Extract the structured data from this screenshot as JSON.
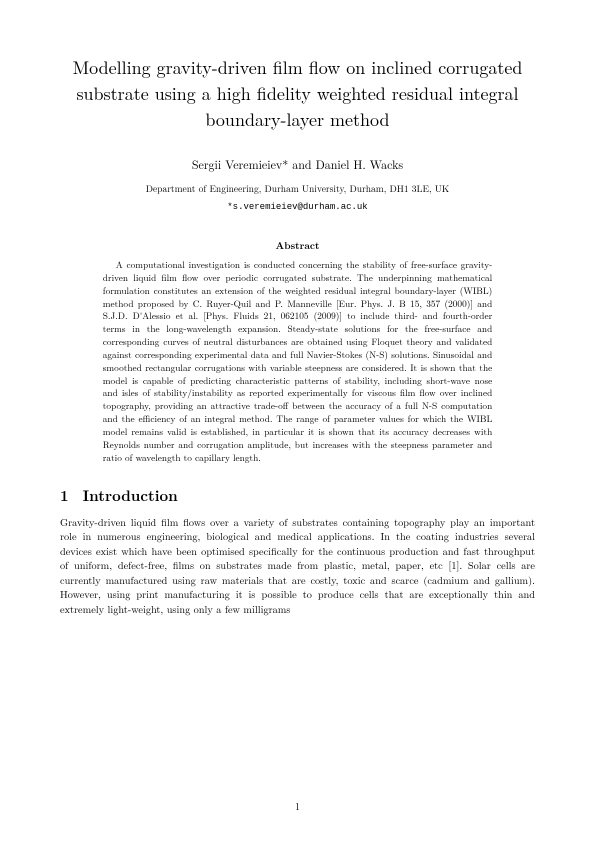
{
  "title": "Modelling gravity-driven film flow on inclined corrugated substrate using a high fidelity weighted residual integral boundary-layer method",
  "authors": "Sergii Veremieiev* and Daniel H. Wacks",
  "affiliation": "Department of Engineering, Durham University, Durham, DH1 3LE, UK",
  "email": "*s.veremieiev@durham.ac.uk",
  "abstractHeading": "Abstract",
  "abstract": "A computational investigation is conducted concerning the stability of free-surface gravity-driven liquid film flow over periodic corrugated substrate. The underpinning mathematical formulation constitutes an extension of the weighted residual integral boundary-layer (WIBL) method proposed by C. Ruyer-Quil and P. Manneville [Eur. Phys. J. B 15, 357 (2000)] and S.J.D. D'Alessio et al. [Phys. Fluids 21, 062105 (2009)] to include third- and fourth-order terms in the long-wavelength expansion. Steady-state solutions for the free-surface and corresponding curves of neutral disturbances are obtained using Floquet theory and validated against corresponding experimental data and full Navier-Stokes (N-S) solutions. Sinusoidal and smoothed rectangular corrugations with variable steepness are considered. It is shown that the model is capable of predicting characteristic patterns of stability, including short-wave nose and isles of stability/instability as reported experimentally for viscous film flow over inclined topography, providing an attractive trade-off between the accuracy of a full N-S computation and the efficiency of an integral method. The range of parameter values for which the WIBL model remains valid is established, in particular it is shown that its accuracy decreases with Reynolds number and corrugation amplitude, but increases with the steepness parameter and ratio of wavelength to capillary length.",
  "section": {
    "num": "1",
    "title": "Introduction"
  },
  "intro": "Gravity-driven liquid film flows over a variety of substrates containing topography play an important role in numerous engineering, biological and medical applications. In the coating industries several devices exist which have been optimised specifically for the continuous production and fast throughput of uniform, defect-free, films on substrates made from plastic, metal, paper, etc [1]. Solar cells are currently manufactured using raw materials that are costly, toxic and scarce (cadmium and gallium). However, using print manufacturing it is possible to produce cells that are exceptionally thin and extremely light-weight, using only a few milligrams",
  "pageNumber": "1"
}
